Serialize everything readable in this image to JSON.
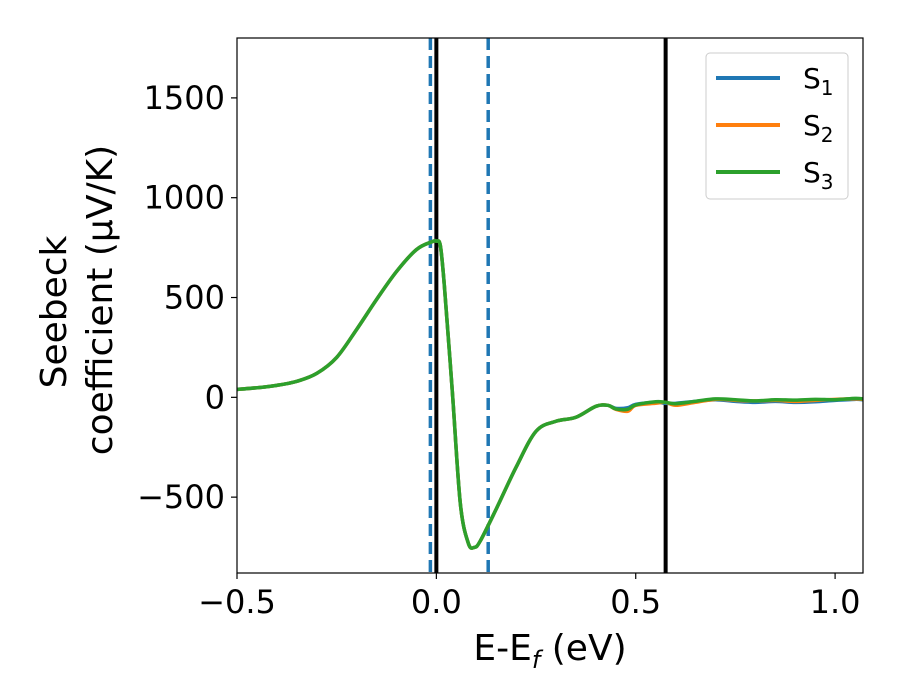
{
  "chart_data": {
    "type": "line",
    "xlabel": "E-E",
    "xlabel_sub": "f",
    "xlabel_unit": " (eV)",
    "ylabel_line1": "Seebeck",
    "ylabel_line2": "coefficient  (μV/K)",
    "xlim": [
      -0.5,
      1.07
    ],
    "ylim": [
      -880,
      1800
    ],
    "xticks": [
      {
        "value": -0.5,
        "label": "−0.5"
      },
      {
        "value": 0.0,
        "label": "0.0"
      },
      {
        "value": 0.5,
        "label": "0.5"
      },
      {
        "value": 1.0,
        "label": "1.0"
      }
    ],
    "yticks": [
      {
        "value": -500,
        "label": "−500"
      },
      {
        "value": 0,
        "label": "0"
      },
      {
        "value": 500,
        "label": "500"
      },
      {
        "value": 1000,
        "label": "1000"
      },
      {
        "value": 1500,
        "label": "1500"
      }
    ],
    "legend_position": "top-right",
    "vlines": [
      {
        "x": -0.015,
        "style": "dashed",
        "color": "#1f77b4"
      },
      {
        "x": 0.0,
        "style": "solid",
        "color": "#000000"
      },
      {
        "x": 0.13,
        "style": "dashed",
        "color": "#1f77b4"
      },
      {
        "x": 0.575,
        "style": "solid",
        "color": "#000000"
      }
    ],
    "x": [
      -0.5,
      -0.45,
      -0.4,
      -0.35,
      -0.3,
      -0.25,
      -0.2,
      -0.15,
      -0.1,
      -0.05,
      -0.01,
      0.0,
      0.01,
      0.02,
      0.04,
      0.06,
      0.08,
      0.095,
      0.11,
      0.15,
      0.2,
      0.25,
      0.3,
      0.35,
      0.4,
      0.43,
      0.45,
      0.48,
      0.5,
      0.55,
      0.575,
      0.6,
      0.65,
      0.7,
      0.75,
      0.8,
      0.85,
      0.9,
      0.95,
      1.0,
      1.05,
      1.07
    ],
    "series": [
      {
        "name": "S",
        "name_sub": "1",
        "color": "#1f77b4",
        "values": [
          40,
          48,
          60,
          80,
          120,
          200,
          340,
          490,
          630,
          740,
          780,
          782,
          760,
          560,
          30,
          -530,
          -730,
          -752,
          -720,
          -560,
          -350,
          -170,
          -120,
          -100,
          -45,
          -40,
          -55,
          -52,
          -35,
          -25,
          -30,
          -30,
          -20,
          -12,
          -20,
          -25,
          -20,
          -25,
          -22,
          -15,
          -10,
          -12
        ]
      },
      {
        "name": "S",
        "name_sub": "2",
        "color": "#ff7f0e",
        "values": [
          40,
          48,
          60,
          80,
          120,
          200,
          340,
          490,
          630,
          740,
          780,
          782,
          760,
          560,
          30,
          -530,
          -730,
          -752,
          -720,
          -560,
          -350,
          -170,
          -120,
          -100,
          -45,
          -40,
          -60,
          -70,
          -40,
          -30,
          -25,
          -40,
          -25,
          -10,
          -15,
          -18,
          -15,
          -20,
          -15,
          -10,
          -8,
          -10
        ]
      },
      {
        "name": "S",
        "name_sub": "3",
        "color": "#2ca02c",
        "values": [
          40,
          48,
          60,
          80,
          120,
          200,
          340,
          490,
          630,
          740,
          780,
          782,
          760,
          560,
          30,
          -530,
          -730,
          -752,
          -720,
          -560,
          -350,
          -170,
          -120,
          -100,
          -45,
          -40,
          -58,
          -60,
          -38,
          -22,
          -25,
          -32,
          -20,
          -8,
          -12,
          -18,
          -12,
          -14,
          -10,
          -12,
          -5,
          -8
        ]
      }
    ]
  }
}
